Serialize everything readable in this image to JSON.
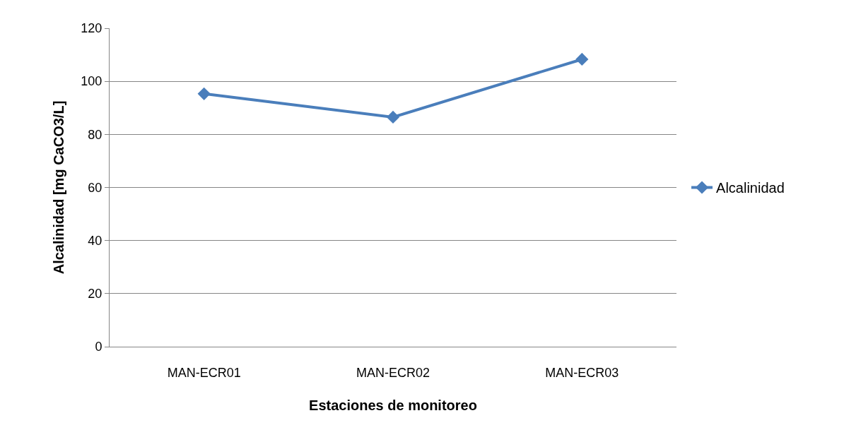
{
  "chart_data": {
    "type": "line",
    "xlabel": "Estaciones de monitoreo",
    "ylabel": "Alcalinidad [mg CaCO3/L]",
    "categories": [
      "MAN-ECR01",
      "MAN-ECR02",
      "MAN-ECR03"
    ],
    "series": [
      {
        "name": "Alcalinidad",
        "color": "#4a7ebb",
        "values": [
          95.3,
          86.5,
          108.3
        ]
      }
    ],
    "ylim": [
      0,
      120
    ],
    "yticks": [
      0,
      20,
      40,
      60,
      80,
      100,
      120
    ],
    "grid": "y",
    "legend": "right",
    "marker": "diamond",
    "line_style": "solid"
  }
}
